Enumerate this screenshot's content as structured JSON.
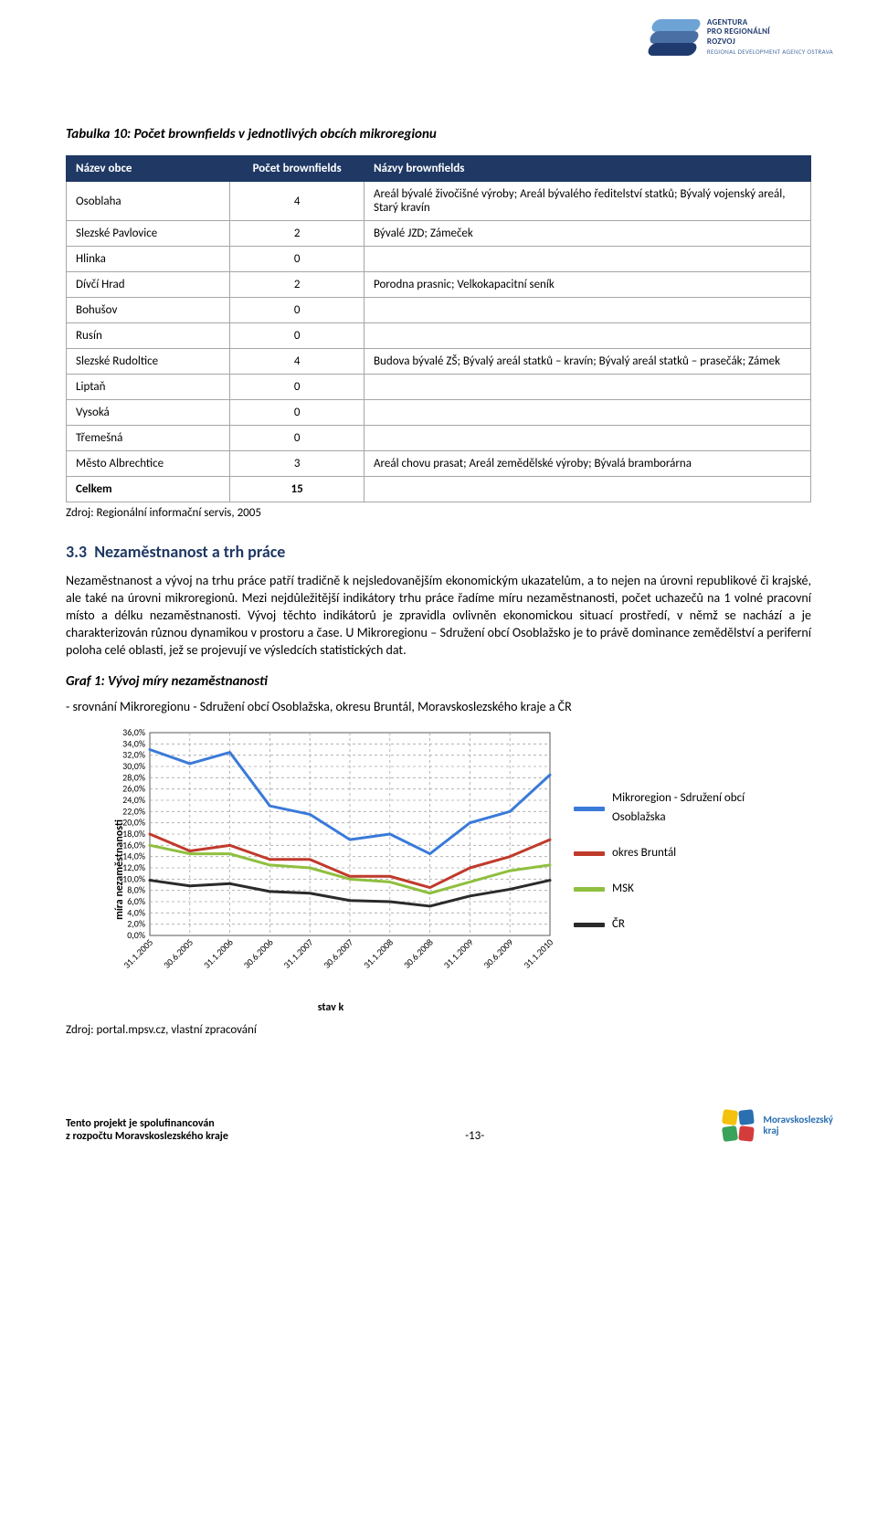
{
  "header": {
    "agency_line1": "AGENTURA",
    "agency_line2": "PRO REGIONÁLNÍ",
    "agency_line3": "ROZVOJ",
    "agency_line4": "REGIONAL DEVELOPMENT AGENCY OSTRAVA"
  },
  "table_title": "Tabulka 10: Počet brownfields v jednotlivých obcích mikroregionu",
  "table": {
    "columns": [
      "Název obce",
      "Počet brownfields",
      "Názvy brownfields"
    ],
    "rows": [
      [
        "Osoblaha",
        "4",
        "Areál bývalé živočišné výroby; Areál bývalého ředitelství statků; Bývalý vojenský areál, Starý kravín"
      ],
      [
        "Slezské Pavlovice",
        "2",
        "Bývalé JZD; Zámeček"
      ],
      [
        "Hlinka",
        "0",
        ""
      ],
      [
        "Dívčí Hrad",
        "2",
        "Porodna prasnic; Velkokapacitní seník"
      ],
      [
        "Bohušov",
        "0",
        ""
      ],
      [
        "Rusín",
        "0",
        ""
      ],
      [
        "Slezské Rudoltice",
        "4",
        "Budova bývalé ZŠ; Bývalý areál statků – kravín; Bývalý areál statků – prasečák; Zámek"
      ],
      [
        "Liptaň",
        "0",
        ""
      ],
      [
        "Vysoká",
        "0",
        ""
      ],
      [
        "Třemešná",
        "0",
        ""
      ],
      [
        "Město Albrechtice",
        "3",
        "Areál chovu prasat; Areál zemědělské výroby; Bývalá bramborárna"
      ],
      [
        "Celkem",
        "15",
        ""
      ]
    ]
  },
  "zdroj1": "Zdroj:   Regionální informační servis, 2005",
  "section_num": "3.3",
  "section_title": "Nezaměstnanost a trh práce",
  "body_text": "Nezaměstnanost a vývoj na trhu práce patří tradičně k nejsledovanějším ekonomickým ukazatelům, a to nejen na úrovni republikové či krajské, ale také na úrovni mikroregionů. Mezi nejdůležitější indikátory trhu práce řadíme míru nezaměstnanosti, počet uchazečů na 1 volné pracovní místo a délku nezaměstnanosti. Vývoj těchto indikátorů je zpravidla ovlivněn ekonomickou situací prostředí, v němž se nachází a je charakterizován různou dynamikou v prostoru a čase. U Mikroregionu – Sdružení obcí Osoblažsko je to právě dominance zemědělství a periferní poloha celé oblasti, jež se projevují ve výsledcích statistických dat.",
  "graf_title": "Graf 1: Vývoj míry nezaměstnanosti",
  "graf_sub": "- srovnání Mikroregionu - Sdružení obcí Osoblažska, okresu Bruntál, Moravskoslezského kraje a ČR",
  "chart": {
    "type": "line",
    "ylabel": "míra nezaměstnanosti",
    "xlabel": "stav k",
    "ylim": [
      0.0,
      36.0
    ],
    "ytick_step": 2.0,
    "ytick_labels": [
      "0,0%",
      "2,0%",
      "4,0%",
      "6,0%",
      "8,0%",
      "10,0%",
      "12,0%",
      "14,0%",
      "16,0%",
      "18,0%",
      "20,0%",
      "22,0%",
      "24,0%",
      "26,0%",
      "28,0%",
      "30,0%",
      "32,0%",
      "34,0%",
      "36,0%"
    ],
    "x_categories": [
      "31.1.2005",
      "30.6.2005",
      "31.1.2006",
      "30.6.2006",
      "31.1.2007",
      "30.6.2007",
      "31.1.2008",
      "30.6.2008",
      "31.1.2009",
      "30.6.2009",
      "31.1.2010"
    ],
    "series": [
      {
        "name": "Mikroregion - Sdružení obcí Osoblažska",
        "color": "#3a7ad9",
        "width": 3,
        "values": [
          33.0,
          30.5,
          32.5,
          23.0,
          21.5,
          17.0,
          18.0,
          14.5,
          20.0,
          22.0,
          28.5
        ]
      },
      {
        "name": "okres Bruntál",
        "color": "#c03a2b",
        "width": 3,
        "values": [
          18.0,
          15.0,
          16.0,
          13.5,
          13.5,
          10.5,
          10.5,
          8.5,
          12.0,
          14.0,
          17.0
        ]
      },
      {
        "name": "MSK",
        "color": "#8fbf3f",
        "width": 3,
        "values": [
          16.0,
          14.5,
          14.5,
          12.5,
          12.0,
          10.0,
          9.5,
          7.5,
          9.5,
          11.5,
          12.5
        ]
      },
      {
        "name": "ČR",
        "color": "#2a2a2a",
        "width": 3,
        "values": [
          9.8,
          8.8,
          9.2,
          7.8,
          7.5,
          6.2,
          6.0,
          5.2,
          7.0,
          8.2,
          9.8
        ]
      }
    ],
    "plot_bg": "#ffffff",
    "border_color": "#595959",
    "grid_color": "#a6a6a6",
    "grid_dash": "3,3",
    "axis_fontsize": 10,
    "marker_style": "none"
  },
  "zdroj2": "Zdroj: portal.mpsv.cz, vlastní zpracování",
  "footer": {
    "line1": "Tento projekt je spolufinancován",
    "line2": "z rozpočtu Moravskoslezského kraje",
    "page": "-13-",
    "msk1": "Moravskoslezský",
    "msk2": "kraj"
  }
}
